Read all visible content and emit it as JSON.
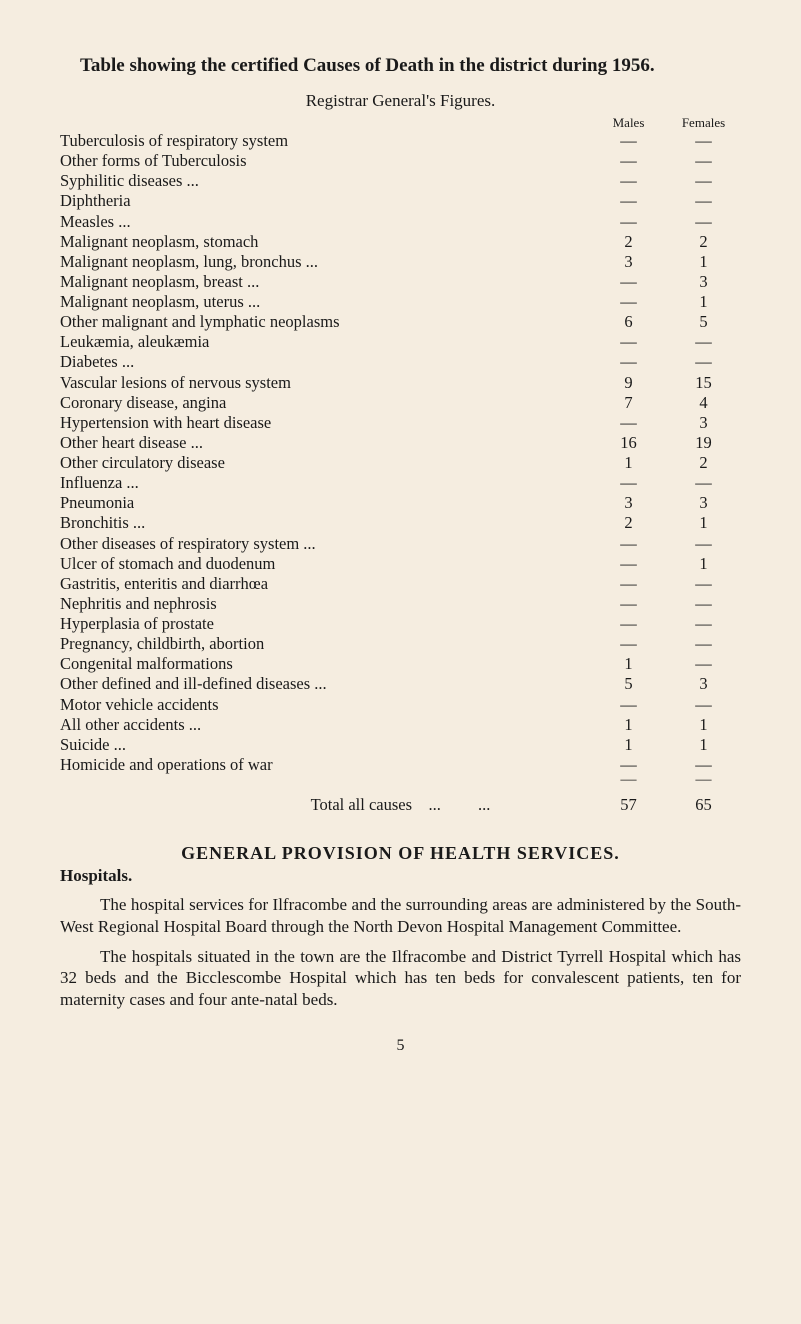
{
  "title": "Table showing the certified Causes of Death in the district during 1956.",
  "subtitle": "Registrar General's Figures.",
  "headers": {
    "males": "Males",
    "females": "Females"
  },
  "rows": [
    {
      "label": "Tuberculosis of respiratory system",
      "males": "—",
      "females": "—"
    },
    {
      "label": "Other forms of Tuberculosis",
      "males": "—",
      "females": "—"
    },
    {
      "label": "Syphilitic diseases   ...",
      "males": "—",
      "females": "—"
    },
    {
      "label": "Diphtheria",
      "males": "—",
      "females": "—"
    },
    {
      "label": "Measles   ...",
      "males": "—",
      "females": "—"
    },
    {
      "label": "Malignant neoplasm, stomach",
      "males": "2",
      "females": "2"
    },
    {
      "label": "Malignant neoplasm, lung, bronchus   ...",
      "males": "3",
      "females": "1"
    },
    {
      "label": "Malignant neoplasm, breast   ...",
      "males": "—",
      "females": "3"
    },
    {
      "label": "Malignant neoplasm, uterus   ...",
      "males": "—",
      "females": "1"
    },
    {
      "label": "Other malignant and lymphatic neoplasms",
      "males": "6",
      "females": "5"
    },
    {
      "label": "Leukæmia, aleukæmia",
      "males": "—",
      "females": "—"
    },
    {
      "label": "Diabetes   ...",
      "males": "—",
      "females": "—"
    },
    {
      "label": "Vascular lesions of nervous system",
      "males": "9",
      "females": "15"
    },
    {
      "label": "Coronary disease, angina",
      "males": "7",
      "females": "4"
    },
    {
      "label": "Hypertension with heart disease",
      "males": "—",
      "females": "3"
    },
    {
      "label": "Other heart disease ...",
      "males": "16",
      "females": "19"
    },
    {
      "label": "Other circulatory disease",
      "males": "1",
      "females": "2"
    },
    {
      "label": "Influenza ...",
      "males": "—",
      "females": "—"
    },
    {
      "label": "Pneumonia",
      "males": "3",
      "females": "3"
    },
    {
      "label": "Bronchitis ...",
      "males": "2",
      "females": "1"
    },
    {
      "label": "Other diseases of respiratory system   ...",
      "males": "—",
      "females": "—"
    },
    {
      "label": "Ulcer of stomach and duodenum",
      "males": "—",
      "females": "1"
    },
    {
      "label": "Gastritis, enteritis and diarrhœa",
      "males": "—",
      "females": "—"
    },
    {
      "label": "Nephritis and nephrosis",
      "males": "—",
      "females": "—"
    },
    {
      "label": "Hyperplasia of prostate",
      "males": "—",
      "females": "—"
    },
    {
      "label": "Pregnancy, childbirth, abortion",
      "males": "—",
      "females": "—"
    },
    {
      "label": "Congenital malformations",
      "males": "1",
      "females": "—"
    },
    {
      "label": "Other defined and ill-defined diseases ...",
      "males": "5",
      "females": "3"
    },
    {
      "label": "Motor vehicle accidents",
      "males": "—",
      "females": "—"
    },
    {
      "label": "All other accidents ...",
      "males": "1",
      "females": "1"
    },
    {
      "label": "Suicide     ...",
      "males": "1",
      "females": "1"
    },
    {
      "label": "Homicide and operations of war",
      "males": "—",
      "females": "—"
    }
  ],
  "total": {
    "label": "Total all causes",
    "males": "57",
    "females": "65"
  },
  "section_heading": "GENERAL PROVISION OF HEALTH SERVICES.",
  "subheading": "Hospitals.",
  "para1": "The hospital services for Ilfracombe and the surrounding areas are administered by the South-West Regional Hospital Board through the North Devon Hospital Management Committee.",
  "para2": "The hospitals situated in the town are the Ilfracombe and District Tyrrell Hospital which has 32 beds and the Bicclescombe Hospital which has ten beds for convalescent patients, ten for maternity cases and four ante-natal beds.",
  "page_number": "5",
  "colors": {
    "background": "#f5ede0",
    "text": "#1a1a1a"
  }
}
